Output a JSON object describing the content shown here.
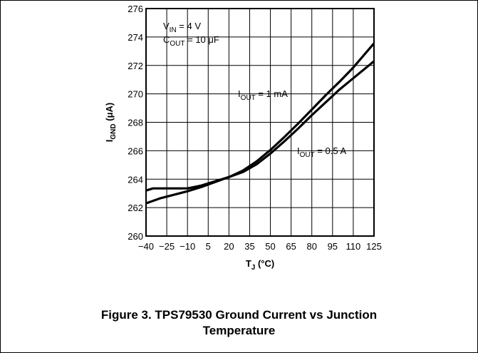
{
  "figure": {
    "caption_line1": "Figure 3. TPS79530 Ground Current vs Junction",
    "caption_line2": "Temperature"
  },
  "chart_data": {
    "type": "line",
    "xlabel": {
      "main": "T",
      "sub": "J",
      "tail": " (°C)"
    },
    "ylabel": {
      "main": "I",
      "sub": "GND",
      "tail": " (μA)"
    },
    "xlim": [
      -40,
      125
    ],
    "ylim": [
      260,
      276
    ],
    "xticks": [
      -40,
      -25,
      -10,
      5,
      20,
      35,
      50,
      65,
      80,
      95,
      110,
      125
    ],
    "xtick_labels": [
      "−40",
      "−25",
      "−10",
      "5",
      "20",
      "35",
      "50",
      "65",
      "80",
      "95",
      "110",
      "125"
    ],
    "yticks": [
      260,
      262,
      264,
      266,
      268,
      270,
      272,
      274,
      276
    ],
    "grid": true,
    "conditions": [
      {
        "main": "V",
        "sub": "IN",
        "tail": " = 4 V"
      },
      {
        "main": "C",
        "sub": "OUT",
        "tail": " = 10 μF"
      }
    ],
    "series": [
      {
        "name": {
          "main": "I",
          "sub": "OUT",
          "tail": " = 1 mA"
        },
        "x": [
          -40,
          -30,
          -20,
          -10,
          0,
          10,
          20,
          30,
          40,
          50,
          60,
          70,
          80,
          90,
          100,
          110,
          125
        ],
        "y": [
          262.3,
          262.65,
          262.9,
          263.15,
          263.45,
          263.8,
          264.15,
          264.6,
          265.25,
          266.05,
          266.95,
          267.9,
          268.9,
          269.9,
          270.85,
          271.85,
          273.55
        ]
      },
      {
        "name": {
          "main": "I",
          "sub": "OUT",
          "tail": " = 0.5 A"
        },
        "x": [
          -40,
          -35,
          -25,
          -10,
          0,
          10,
          20,
          30,
          40,
          50,
          60,
          70,
          80,
          90,
          100,
          110,
          125
        ],
        "y": [
          263.2,
          263.35,
          263.35,
          263.35,
          263.55,
          263.85,
          264.15,
          264.5,
          265.05,
          265.8,
          266.65,
          267.55,
          268.5,
          269.4,
          270.3,
          271.1,
          272.3
        ]
      }
    ]
  }
}
